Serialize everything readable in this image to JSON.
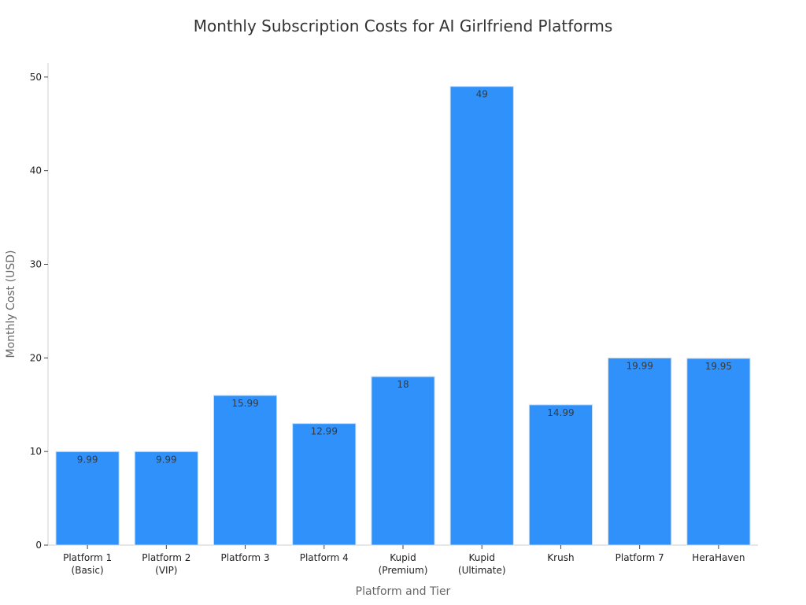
{
  "chart_data": {
    "type": "bar",
    "title": "Monthly Subscription Costs for AI Girlfriend Platforms",
    "xlabel": "Platform and Tier",
    "ylabel": "Monthly Cost (USD)",
    "categories": [
      "Platform 1\n(Basic)",
      "Platform 2\n(VIP)",
      "Platform 3",
      "Platform 4",
      "Kupid\n(Premium)",
      "Kupid\n(Ultimate)",
      "Krush",
      "Platform 7",
      "HeraHaven"
    ],
    "values": [
      9.99,
      9.99,
      15.99,
      12.99,
      18,
      49,
      14.99,
      19.99,
      19.95
    ],
    "data_labels": [
      "9.99",
      "9.99",
      "15.99",
      "12.99",
      "18",
      "49",
      "14.99",
      "19.99",
      "19.95"
    ],
    "ylim": [
      0,
      51.5
    ],
    "yticks": [
      0,
      10,
      20,
      30,
      40,
      50
    ],
    "grid": false,
    "legend": "none",
    "bar_color": "#2f91f9",
    "bar_edge_color": "#c9dcee"
  }
}
